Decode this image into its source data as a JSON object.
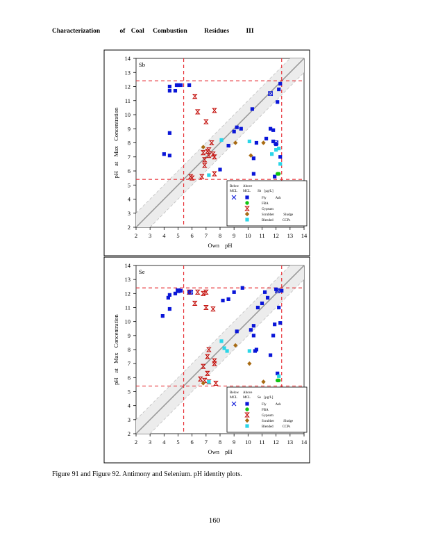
{
  "header": {
    "words": [
      "Characterization",
      "of",
      "Coal",
      "Combustion",
      "Residues",
      "III"
    ]
  },
  "caption": "Figure 91 and Figure 92. Antimony and Selenium. pH identity plots.",
  "page_number": "160",
  "legend": {
    "below_header": "Below MCL",
    "above_header": "Above MCL",
    "unit": "Sb [µg/L]",
    "unit_se": "Se [µg/L]",
    "entries": [
      {
        "label": "Fly Ash",
        "color": "#0a16d8",
        "marker": "square"
      },
      {
        "label": "FBA",
        "color": "#12c412",
        "marker": "circle"
      },
      {
        "label": "Gypsum",
        "color": "#c4120e",
        "marker": "hourglass"
      },
      {
        "label": "Scrubber Sludge",
        "color": "#a86a12",
        "marker": "diamond"
      },
      {
        "label": "Blended CCPs",
        "color": "#2ad6e8",
        "marker": "square"
      }
    ],
    "below_symbol_color": "#0a16d8"
  },
  "chart_data": [
    {
      "type": "scatter",
      "panel_label": "Sb",
      "xlabel": "Own pH",
      "ylabel": "pH at Max Concentration",
      "xlim": [
        2,
        14
      ],
      "ylim": [
        2,
        14
      ],
      "xticks": [
        2,
        3,
        4,
        5,
        6,
        7,
        8,
        9,
        10,
        11,
        12,
        13,
        14
      ],
      "yticks": [
        2,
        3,
        4,
        5,
        6,
        7,
        8,
        9,
        10,
        11,
        12,
        13,
        14
      ],
      "ref_x": [
        5.4,
        12.4
      ],
      "ref_y": [
        5.4,
        12.4
      ],
      "series": [
        {
          "name": "Fly Ash",
          "points": [
            [
              4.0,
              7.2
            ],
            [
              4.4,
              7.1
            ],
            [
              4.4,
              8.7
            ],
            [
              4.4,
              11.7
            ],
            [
              4.4,
              12.0
            ],
            [
              4.8,
              11.7
            ],
            [
              4.9,
              12.1
            ],
            [
              5.0,
              12.1
            ],
            [
              5.2,
              12.1
            ],
            [
              5.8,
              12.1
            ],
            [
              8.0,
              6.1
            ],
            [
              8.6,
              7.8
            ],
            [
              9.0,
              8.8
            ],
            [
              9.2,
              9.1
            ],
            [
              9.5,
              9.0
            ],
            [
              10.3,
              10.4
            ],
            [
              10.4,
              6.9
            ],
            [
              10.4,
              5.8
            ],
            [
              10.6,
              8.0
            ],
            [
              11.3,
              8.3
            ],
            [
              11.6,
              9.0
            ],
            [
              11.8,
              8.9
            ],
            [
              11.8,
              8.1
            ],
            [
              11.9,
              5.6
            ],
            [
              12.0,
              7.9
            ],
            [
              12.1,
              10.9
            ],
            [
              12.2,
              11.8
            ],
            [
              12.3,
              12.2
            ],
            [
              12.3,
              7.0
            ]
          ]
        },
        {
          "name": "FBA",
          "points": [
            [
              12.1,
              5.8
            ],
            [
              12.2,
              5.8
            ]
          ]
        },
        {
          "name": "Gypsum",
          "points": [
            [
              5.9,
              5.6
            ],
            [
              6.0,
              5.5
            ],
            [
              6.2,
              11.3
            ],
            [
              6.4,
              10.2
            ],
            [
              6.7,
              5.6
            ],
            [
              6.8,
              7.3
            ],
            [
              6.9,
              6.4
            ],
            [
              6.9,
              6.8
            ],
            [
              7.0,
              9.5
            ],
            [
              7.1,
              7.4
            ],
            [
              7.2,
              7.1
            ],
            [
              7.2,
              7.5
            ],
            [
              7.4,
              8.0
            ],
            [
              7.5,
              7.2
            ],
            [
              7.6,
              10.3
            ],
            [
              7.6,
              7.0
            ],
            [
              7.6,
              5.8
            ]
          ]
        },
        {
          "name": "Scrubber Sludge",
          "points": [
            [
              6.8,
              7.7
            ],
            [
              9.1,
              8.0
            ],
            [
              10.2,
              7.1
            ],
            [
              11.1,
              8.0
            ]
          ]
        },
        {
          "name": "Blended CCPs",
          "points": [
            [
              7.2,
              5.7
            ],
            [
              8.1,
              8.2
            ],
            [
              10.1,
              8.1
            ],
            [
              11.7,
              7.2
            ],
            [
              12.0,
              7.5
            ],
            [
              12.2,
              7.6
            ],
            [
              12.3,
              6.5
            ]
          ]
        }
      ],
      "below_mcl_x": [
        [
          11.6,
          11.5
        ],
        [
          12.0,
          8.0
        ]
      ]
    },
    {
      "type": "scatter",
      "panel_label": "Se",
      "xlabel": "Own pH",
      "ylabel": "pH at Max Concentration",
      "xlim": [
        2,
        14
      ],
      "ylim": [
        2,
        14
      ],
      "xticks": [
        2,
        3,
        4,
        5,
        6,
        7,
        8,
        9,
        10,
        11,
        12,
        13,
        14
      ],
      "yticks": [
        2,
        3,
        4,
        5,
        6,
        7,
        8,
        9,
        10,
        11,
        12,
        13,
        14
      ],
      "ref_x": [
        5.4,
        12.4
      ],
      "ref_y": [
        5.4,
        12.4
      ],
      "series": [
        {
          "name": "Fly Ash",
          "points": [
            [
              3.9,
              10.4
            ],
            [
              4.3,
              11.7
            ],
            [
              4.4,
              11.9
            ],
            [
              4.4,
              10.9
            ],
            [
              4.8,
              12.0
            ],
            [
              5.0,
              12.2
            ],
            [
              5.2,
              12.2
            ],
            [
              5.8,
              12.1
            ],
            [
              8.2,
              11.5
            ],
            [
              8.6,
              11.6
            ],
            [
              9.0,
              12.1
            ],
            [
              9.2,
              9.3
            ],
            [
              9.6,
              12.4
            ],
            [
              10.2,
              9.4
            ],
            [
              10.4,
              9.0
            ],
            [
              10.4,
              9.7
            ],
            [
              10.5,
              7.9
            ],
            [
              10.6,
              8.0
            ],
            [
              10.7,
              11.0
            ],
            [
              11.0,
              11.3
            ],
            [
              11.2,
              12.1
            ],
            [
              11.4,
              11.7
            ],
            [
              11.6,
              7.6
            ],
            [
              11.8,
              9.0
            ],
            [
              11.9,
              9.8
            ],
            [
              12.0,
              12.3
            ],
            [
              12.1,
              6.3
            ],
            [
              12.2,
              11.0
            ],
            [
              12.3,
              9.9
            ],
            [
              12.4,
              12.2
            ]
          ]
        },
        {
          "name": "FBA",
          "points": [
            [
              12.1,
              5.8
            ],
            [
              12.2,
              5.8
            ]
          ]
        },
        {
          "name": "Gypsum",
          "points": [
            [
              5.8,
              12.1
            ],
            [
              6.2,
              11.3
            ],
            [
              6.4,
              12.1
            ],
            [
              6.6,
              5.9
            ],
            [
              6.8,
              12.0
            ],
            [
              6.8,
              6.8
            ],
            [
              6.9,
              5.8
            ],
            [
              7.0,
              11.0
            ],
            [
              7.0,
              12.1
            ],
            [
              7.1,
              7.5
            ],
            [
              7.1,
              6.3
            ],
            [
              7.2,
              8.0
            ],
            [
              7.2,
              5.7
            ],
            [
              7.5,
              10.9
            ],
            [
              7.6,
              7.2
            ],
            [
              7.6,
              7.0
            ],
            [
              7.7,
              5.6
            ]
          ]
        },
        {
          "name": "Scrubber Sludge",
          "points": [
            [
              6.8,
              5.6
            ],
            [
              9.1,
              8.3
            ],
            [
              10.1,
              7.0
            ],
            [
              11.1,
              5.7
            ]
          ]
        },
        {
          "name": "Blended CCPs",
          "points": [
            [
              7.2,
              5.7
            ],
            [
              8.1,
              8.6
            ],
            [
              8.3,
              8.1
            ],
            [
              8.5,
              7.9
            ],
            [
              10.1,
              7.9
            ],
            [
              12.2,
              6.1
            ]
          ]
        }
      ],
      "below_mcl_x": [
        [
          5.0,
          12.2
        ],
        [
          5.9,
          12.1
        ],
        [
          12.1,
          12.2
        ]
      ]
    }
  ]
}
